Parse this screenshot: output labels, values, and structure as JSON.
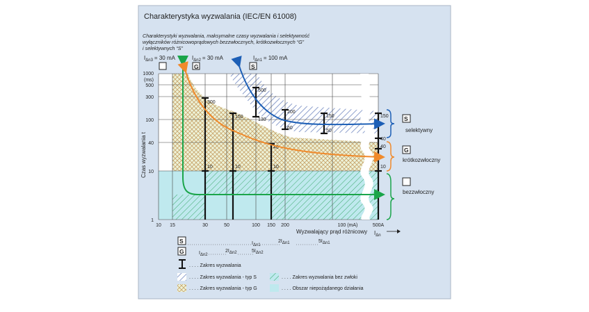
{
  "colors": {
    "panel_bg": "#d6e2f0",
    "plot_bg": "#ffffff",
    "green": "#1aa54a",
    "orange": "#f08a2b",
    "blue": "#1d5fb6",
    "cyan_area": "#bfe9ee",
    "hatch_s": "#6f86bf",
    "hatch_g": "#c7a36b",
    "hatch_bez": "#3aa86a",
    "border": "#aab6c6"
  },
  "header": {
    "title": "Charakterystyka wyzwalania (IEC/EN 61008)",
    "subtitle_line1": "Charakterystyki wyzwalania, maksymalne czasy wyzwalania i selektywność",
    "subtitle_line2": "wyłączników różnicowoprądowych bezzwłocznych, krótkozwłocznych “G”",
    "subtitle_line3": "i selektywnych “S”"
  },
  "markers": {
    "i3": "I",
    "i3_sub": "Δn3",
    "i3_val": "= 30 mA",
    "i2": "I",
    "i2_sub": "Δn2",
    "i2_val": "= 30 mA",
    "i1": "I",
    "i1_sub": "Δn1",
    "i1_val": "= 100 mA",
    "box_g": "G",
    "box_s": "S"
  },
  "axes": {
    "y_title": "Czas wyzwalania  t",
    "y_unit": "(ms)",
    "y_ticks": [
      "1000",
      "500",
      "300",
      "100",
      "40",
      "10",
      "1"
    ],
    "x_ticks": [
      "10",
      "15",
      "30",
      "50",
      "100",
      "150",
      "200",
      "500A"
    ],
    "x_unit": "100 (mA)",
    "x_title": "Wyzwalający prąd różnicowy",
    "x_symbol": "I",
    "x_symbol_sub": "Δn"
  },
  "bar_labels": {
    "b30_top": "300",
    "b30_bot": "10",
    "b50_top": "150",
    "b50_bot": "10",
    "b100_top": "500",
    "b100_mid": "130",
    "b150_top": "40",
    "b150_bot": "10",
    "b200_top": "200",
    "b200_bot": "60",
    "b300_top": "150",
    "b300_bot": "50",
    "b500_a": "150",
    "b500_b": "40",
    "b500_c": "40",
    "b500_d": "10"
  },
  "categories": {
    "selective_box": "S",
    "selective": "selektywny",
    "short_box": "G",
    "short": "krótkozwłoczny",
    "instant": "bezzwłoczny"
  },
  "below": {
    "s_box": "S",
    "g_box": "G",
    "s_i1": "I",
    "s_i1_sub": "Δn1",
    "s_2": "2I",
    "s_2_sub": "Δn1",
    "s_5": "5I",
    "s_5_sub": "Δn1",
    "g_i2": "I",
    "g_i2_sub": "Δn2",
    "g_2": "2I",
    "g_2_sub": "Δn2",
    "g_5": "5I",
    "g_5_sub": "Δn2"
  },
  "legend": {
    "range": ". . . . Zakres wyzwalania",
    "type_s": ". . . . Zakres wyzwalania - typ S",
    "type_g": ". . . . Zakres wyzwalania - typ G",
    "instant": ". . . . Zakres wyzwalania bez zwłoki",
    "unwanted": ". . . . Obszar niepożądanego działania"
  }
}
